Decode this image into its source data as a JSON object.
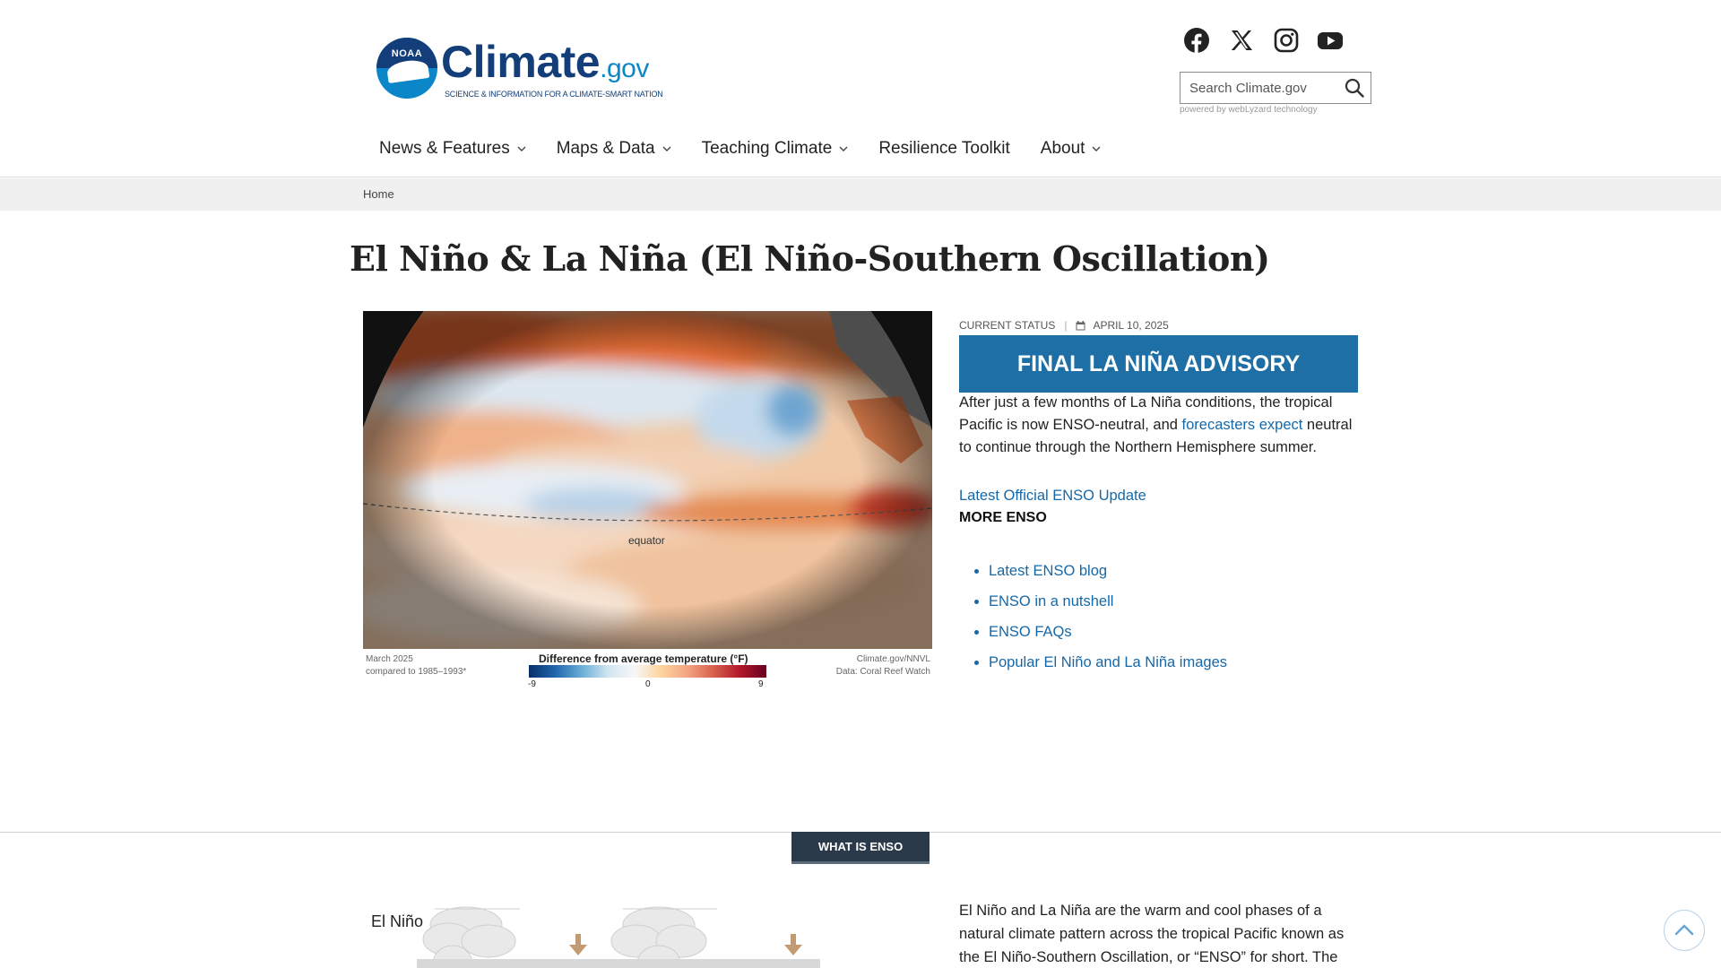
{
  "brand": {
    "badge": "NOAA",
    "wordmark": "Climate",
    "suffix": ".gov",
    "tagline": "SCIENCE & INFORMATION FOR A CLIMATE-SMART NATION"
  },
  "social": [
    {
      "icon": "facebook-icon"
    },
    {
      "icon": "x-icon"
    },
    {
      "icon": "instagram-icon"
    },
    {
      "icon": "youtube-icon"
    }
  ],
  "search": {
    "placeholder": "Search Climate.gov",
    "powered_by": "powered by webLyzard technology"
  },
  "nav": {
    "items": [
      {
        "label": "News & Features",
        "dropdown": true
      },
      {
        "label": "Maps & Data",
        "dropdown": true
      },
      {
        "label": "Teaching Climate",
        "dropdown": true
      },
      {
        "label": "Resilience Toolkit",
        "dropdown": false
      },
      {
        "label": "About",
        "dropdown": true
      }
    ]
  },
  "breadcrumb": {
    "home": "Home"
  },
  "page": {
    "title": "El Niño & La Niña (El Niño-Southern Oscillation)"
  },
  "figure": {
    "equator_label": "equator",
    "caption_left_1": "March 2025",
    "caption_left_2": "compared to 1985–1993*",
    "legend_title": "Difference from average temperature (°F)",
    "tick_min": "-9",
    "tick_mid": "0",
    "tick_max": "9",
    "credit_1": "Climate.gov/NNVL",
    "credit_2": "Data: Coral Reef Watch"
  },
  "status": {
    "label": "CURRENT STATUS",
    "date": "APRIL 10, 2025",
    "advisory": "FINAL LA NIÑA ADVISORY",
    "summary_before": "After just a few months of La Niña conditions, the tropical Pacific is now ENSO-neutral, and ",
    "summary_link": "forecasters expect",
    "summary_after": " neutral to continue through the Northern Hemisphere summer.",
    "latest_link": "Latest Official ENSO Update",
    "more_heading": "MORE ENSO",
    "more_links": [
      "Latest ENSO blog",
      "ENSO in a nutshell",
      "ENSO FAQs",
      "Popular El Niño and La Niña images"
    ]
  },
  "section": {
    "tab": "WHAT IS ENSO",
    "diagram_label": "El Niño",
    "intro": "El Niño and La Niña are the warm and cool phases of a natural climate pattern across the tropical Pacific known as the El Niño-Southern Oscillation, or “ENSO” for short. The pattern"
  },
  "colors": {
    "brand_navy": "#143e7a",
    "brand_blue": "#0a86c9",
    "advisory_bg": "#1d6fa5",
    "link": "#1568a8",
    "section_tab_bg": "#2b3a4a"
  }
}
